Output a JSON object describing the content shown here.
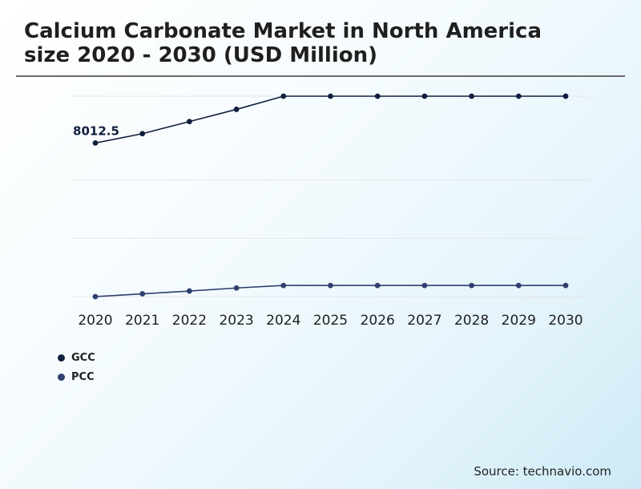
{
  "title": "Calcium Carbonate Market in North America size 2020 - 2030 (USD Million)",
  "source": "Source: technavio.com",
  "colors": {
    "gcc": "#0f1f3d",
    "pcc": "#2e3f6e",
    "grid": "#e6e6e6"
  },
  "chart_data": {
    "type": "line",
    "categories": [
      "2020",
      "2021",
      "2022",
      "2023",
      "2024",
      "2025",
      "2026",
      "2027",
      "2028",
      "2029",
      "2030"
    ],
    "series": [
      {
        "name": "GCC",
        "values": [
          8012.5,
          8380,
          8860,
          9340,
          9860,
          9860,
          9860,
          9860,
          9860,
          9860,
          9860
        ]
      },
      {
        "name": "PCC",
        "values": [
          1950,
          2060,
          2170,
          2290,
          2390,
          2390,
          2390,
          2390,
          2390,
          2390,
          2390
        ]
      }
    ],
    "annotations": [
      {
        "series": 0,
        "index": 0,
        "text": "8012.5"
      }
    ],
    "ylim": [
      1500,
      10000
    ],
    "gridlines": [
      1950,
      4250,
      6550,
      9860
    ],
    "grid": true,
    "legend": "bottom-left",
    "xlabel": "",
    "ylabel": ""
  }
}
